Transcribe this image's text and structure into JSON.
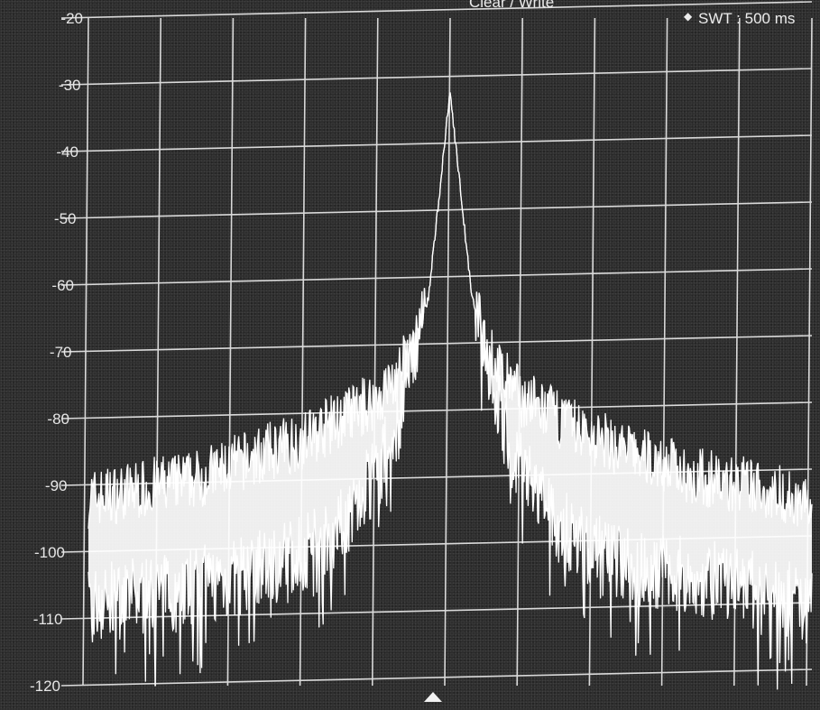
{
  "header": {
    "trace_mode": "Clear / Write",
    "sweep_time": "SWT : 500 ms"
  },
  "chart_data": {
    "type": "line",
    "title": "",
    "xlabel": "",
    "ylabel": "",
    "ylim": [
      -120,
      -20
    ],
    "yticks": [
      "-20",
      "-30",
      "-40",
      "-50",
      "-60",
      "-70",
      "-80",
      "-90",
      "-100",
      "-110",
      "-120"
    ],
    "grid": true,
    "x_divisions": 10,
    "center_marker": "triangle-up",
    "series": [
      {
        "x": [
          -5,
          -4.5,
          -4,
          -3.5,
          -3,
          -2.5,
          -2,
          -1.5,
          -1,
          -0.75,
          -0.5,
          -0.3,
          -0.15,
          0,
          0.15,
          0.3,
          0.5,
          0.75,
          1,
          1.5,
          2,
          2.5,
          3,
          3.5,
          4,
          4.5,
          5
        ],
        "values": [
          -108,
          -107,
          -106,
          -105,
          -104,
          -102,
          -100,
          -96,
          -88,
          -82,
          -70,
          -55,
          -40,
          -31,
          -40,
          -55,
          -70,
          -82,
          -88,
          -96,
          -100,
          -102,
          -103,
          -104,
          -105,
          -107,
          -108
        ]
      },
      {
        "x": [
          -5,
          -4.5,
          -4,
          -3.5,
          -3,
          -2.5,
          -2,
          -1.5,
          -1,
          -0.75,
          -0.5,
          -0.3,
          0,
          0.3,
          0.5,
          0.75,
          1,
          1.5,
          2,
          2.5,
          3,
          3.5,
          4,
          4.5,
          5
        ],
        "values": [
          -92,
          -91,
          -90,
          -89,
          -87,
          -85,
          -83,
          -80,
          -77,
          -74,
          -69,
          -62,
          -31,
          -62,
          -69,
          -74,
          -77,
          -80,
          -83,
          -85,
          -87,
          -89,
          -90,
          -91,
          -93
        ]
      }
    ],
    "colors": {
      "trace": "#ffffff",
      "grid": "#d9d9d9",
      "background": "#2a2a2a"
    }
  }
}
